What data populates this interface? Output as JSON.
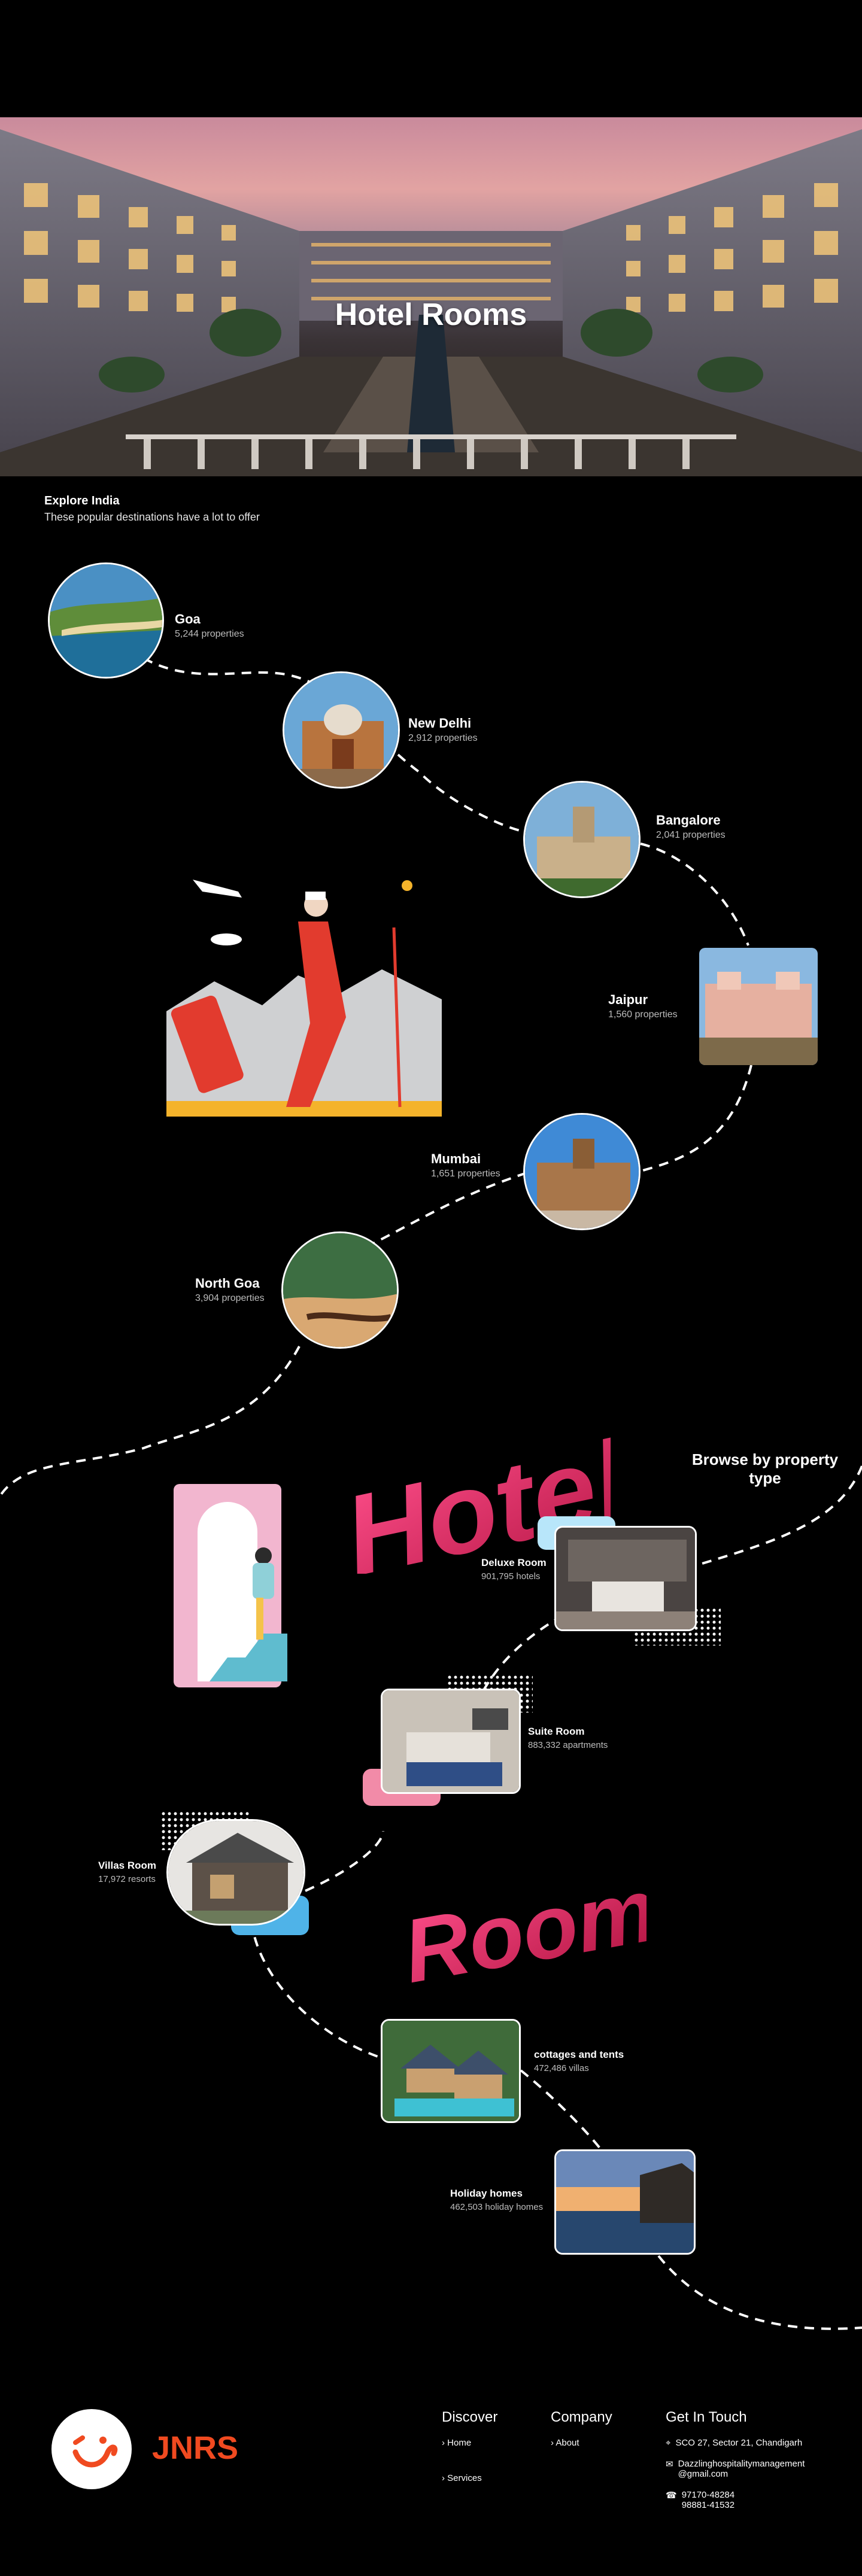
{
  "hero": {
    "title": "Hotel Rooms"
  },
  "explore": {
    "title": "Explore India",
    "subtitle": "These popular destinations have a lot to offer"
  },
  "destinations": [
    {
      "name": "Goa",
      "count": "5,244 properties"
    },
    {
      "name": "New Delhi",
      "count": "2,912 properties"
    },
    {
      "name": "Bangalore",
      "count": "2,041 properties"
    },
    {
      "name": "Jaipur",
      "count": "1,560 properties"
    },
    {
      "name": "Mumbai",
      "count": "1,651 properties"
    },
    {
      "name": "North Goa",
      "count": "3,904 properties"
    }
  ],
  "decor_words": {
    "hotels": "Hotels",
    "room": "Room"
  },
  "browse": {
    "title": "Browse by property type"
  },
  "properties": [
    {
      "name": "Deluxe Room",
      "count": "901,795 hotels"
    },
    {
      "name": "Suite Room",
      "count": "883,332 apartments"
    },
    {
      "name": "Villas Room",
      "count": "17,972 resorts"
    },
    {
      "name": "cottages and tents",
      "count": "472,486 villas"
    },
    {
      "name": "Holiday homes",
      "count": "462,503 holiday homes"
    }
  ],
  "footer": {
    "brand": "JNRS",
    "discover": {
      "title": "Discover",
      "links": [
        "Home",
        "Services"
      ]
    },
    "company": {
      "title": "Company",
      "links": [
        "About"
      ]
    },
    "contact": {
      "title": "Get In Touch",
      "address": "SCO 27, Sector 21, Chandigarh",
      "email_line1": "Dazzlinghospitalitymanagement",
      "email_line2": "@gmail.com",
      "phone_line1": "97170-48284",
      "phone_line2": "98881-41532"
    }
  },
  "colors": {
    "brand_orange": "#f04a20",
    "accent_pink": "#e91e63",
    "accent_blue": "#4fb3e8",
    "accent_pink_light": "#f28ba8",
    "path_white": "#ffffff"
  }
}
